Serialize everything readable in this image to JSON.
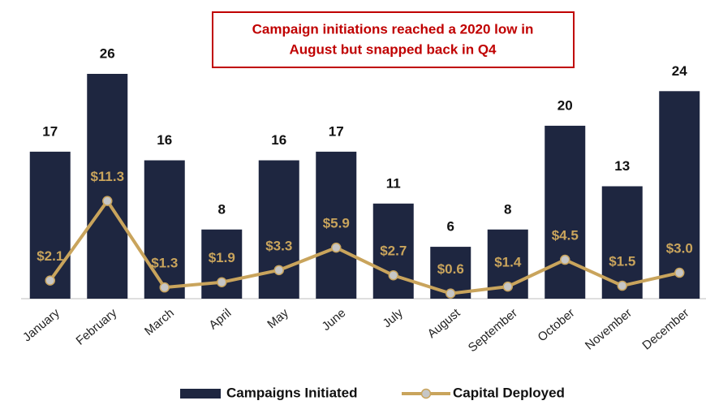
{
  "chart_data": {
    "type": "bar",
    "annotation": [
      "Campaign initiations reached a 2020 low in",
      "August but snapped back in Q4"
    ],
    "categories": [
      "January",
      "February",
      "March",
      "April",
      "May",
      "June",
      "July",
      "August",
      "September",
      "October",
      "November",
      "December"
    ],
    "series": [
      {
        "name": "Campaigns Initiated",
        "type": "bar",
        "color": "#1e2640",
        "values": [
          17,
          26,
          16,
          8,
          16,
          17,
          11,
          6,
          8,
          20,
          13,
          24
        ]
      },
      {
        "name": "Capital Deployed",
        "type": "line",
        "axis": "y2",
        "color": "#c9a45c",
        "marker_color": "#c6c6c6",
        "values": [
          2.1,
          11.3,
          1.3,
          1.9,
          3.3,
          5.9,
          2.7,
          0.6,
          1.4,
          4.5,
          1.5,
          3.0
        ],
        "value_labels": [
          "$2.1",
          "$11.3",
          "$1.3",
          "$1.9",
          "$3.3",
          "$5.9",
          "$2.7",
          "$0.6",
          "$1.4",
          "$4.5",
          "$1.5",
          "$3.0"
        ]
      }
    ],
    "ylim": [
      0,
      26
    ],
    "y2lim": [
      0,
      26
    ],
    "legend": "bottom"
  }
}
